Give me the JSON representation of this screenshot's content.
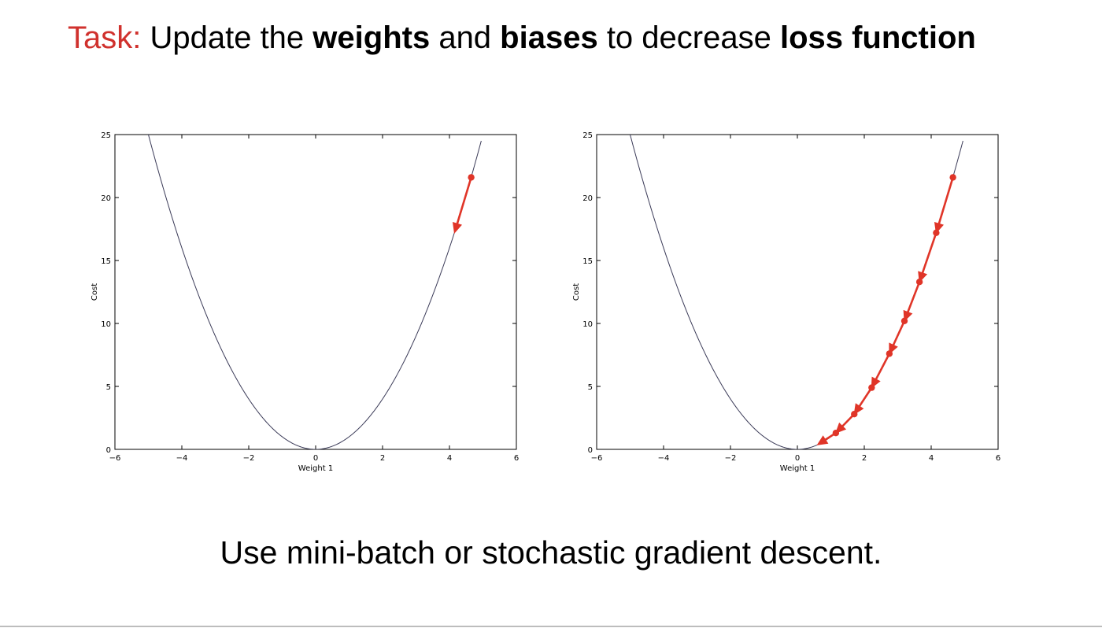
{
  "title": {
    "prefix": "Task:",
    "parts": [
      {
        "text": " Update the ",
        "bold": false
      },
      {
        "text": "weights",
        "bold": true
      },
      {
        "text": " and ",
        "bold": false
      },
      {
        "text": "biases",
        "bold": true
      },
      {
        "text": " to decrease ",
        "bold": false
      },
      {
        "text": "loss function",
        "bold": true
      }
    ]
  },
  "subtitle": "Use mini-batch or stochastic gradient descent.",
  "colors": {
    "accent": "#d0312d",
    "curve": "#3b3b58",
    "step": "#e03528"
  },
  "chart_data": [
    {
      "type": "line",
      "xlabel": "Weight 1",
      "ylabel": "Cost",
      "xlim": [
        -6,
        6
      ],
      "ylim": [
        0,
        25
      ],
      "xticks": [
        -6,
        -4,
        -2,
        0,
        2,
        4,
        6
      ],
      "yticks": [
        0,
        5,
        10,
        15,
        20,
        25
      ],
      "xtick_labels": [
        "−6",
        "−4",
        "−2",
        "0",
        "2",
        "4",
        "6"
      ],
      "ytick_labels": [
        "0",
        "5",
        "10",
        "15",
        "20",
        "25"
      ],
      "grid": false,
      "curve": {
        "function": "y = x^2",
        "x_range": [
          -5.1,
          4.95
        ]
      },
      "steps": [
        {
          "x": 4.65,
          "y": 21.6
        },
        {
          "x": 4.15,
          "y": 17.2
        }
      ],
      "step_markers": "start"
    },
    {
      "type": "line",
      "xlabel": "Weight 1",
      "ylabel": "Cost",
      "xlim": [
        -6,
        6
      ],
      "ylim": [
        0,
        25
      ],
      "xticks": [
        -6,
        -4,
        -2,
        0,
        2,
        4,
        6
      ],
      "yticks": [
        0,
        5,
        10,
        15,
        20,
        25
      ],
      "xtick_labels": [
        "−6",
        "−4",
        "−2",
        "0",
        "2",
        "4",
        "6"
      ],
      "ytick_labels": [
        "0",
        "5",
        "10",
        "15",
        "20",
        "25"
      ],
      "grid": false,
      "curve": {
        "function": "y = x^2",
        "x_range": [
          -5.1,
          4.95
        ]
      },
      "steps": [
        {
          "x": 4.65,
          "y": 21.6
        },
        {
          "x": 4.15,
          "y": 17.2
        },
        {
          "x": 3.65,
          "y": 13.3
        },
        {
          "x": 3.2,
          "y": 10.2
        },
        {
          "x": 2.75,
          "y": 7.6
        },
        {
          "x": 2.22,
          "y": 4.9
        },
        {
          "x": 1.7,
          "y": 2.8
        },
        {
          "x": 1.15,
          "y": 1.3
        },
        {
          "x": 0.6,
          "y": 0.36
        }
      ],
      "step_markers": "all-but-last"
    }
  ]
}
